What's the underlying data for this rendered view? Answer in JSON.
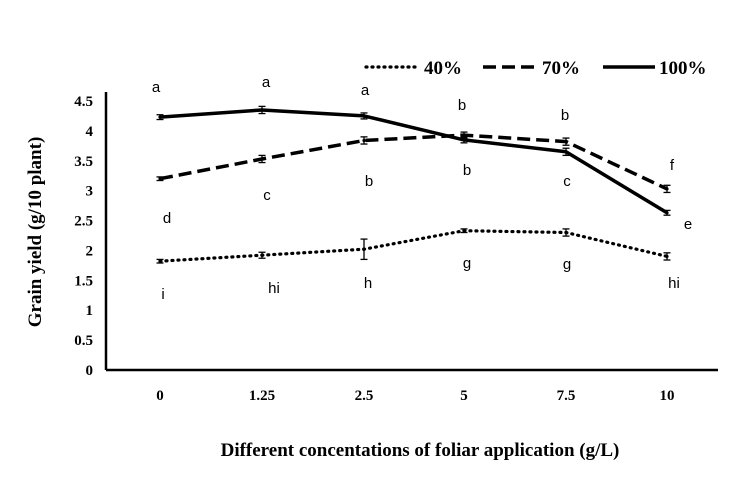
{
  "chart_data": {
    "type": "line",
    "title": "",
    "xlabel": "Different concentations of foliar application (g/L)",
    "ylabel": "Grain yield (g/10 plant)",
    "categories": [
      "0",
      "1.25",
      "2.5",
      "5",
      "7.5",
      "10"
    ],
    "ylim": [
      0,
      4.5
    ],
    "yticks": [
      "0",
      "0.5",
      "1",
      "1.5",
      "2",
      "2.5",
      "3",
      "3.5",
      "4",
      "4.5"
    ],
    "grid": false,
    "legend_position": "top-right",
    "series": [
      {
        "name": "40%",
        "line_style": "dotted",
        "color": "#000000",
        "values": [
          1.82,
          1.92,
          2.02,
          2.33,
          2.3,
          1.9
        ],
        "errors": [
          0.03,
          0.05,
          0.17,
          0.03,
          0.06,
          0.06
        ],
        "letters": [
          "i",
          "hi",
          "h",
          "g",
          "g",
          "hi"
        ]
      },
      {
        "name": "70%",
        "line_style": "dashed",
        "color": "#000000",
        "values": [
          3.2,
          3.53,
          3.84,
          3.93,
          3.82,
          3.03
        ],
        "errors": [
          0.03,
          0.06,
          0.06,
          0.05,
          0.06,
          0.06
        ],
        "letters": [
          "d",
          "c",
          "b",
          "b",
          "c",
          "f"
        ]
      },
      {
        "name": "100%",
        "line_style": "solid",
        "color": "#000000",
        "values": [
          4.23,
          4.35,
          4.25,
          3.85,
          3.65,
          2.63
        ],
        "errors": [
          0.04,
          0.06,
          0.05,
          0.05,
          0.06,
          0.04
        ],
        "letters": [
          "a",
          "a",
          "a",
          "b",
          "b",
          "e"
        ]
      }
    ]
  }
}
